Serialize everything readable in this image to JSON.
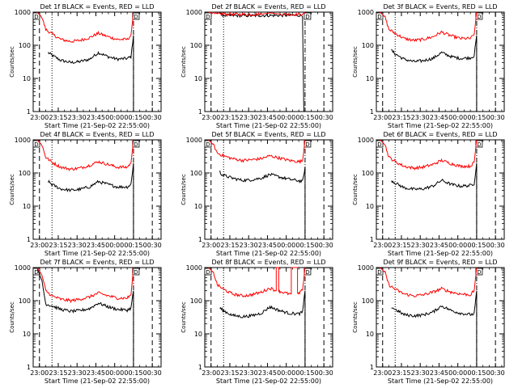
{
  "figure": {
    "x_tick_labels": [
      "23:00",
      "23:15",
      "23:30",
      "23:45",
      "00:00",
      "00:15",
      "00:30"
    ],
    "y_tick_labels": [
      "1",
      "10",
      "100",
      "1000"
    ],
    "ylabel": "Counts/sec",
    "xlabel": "Start Time (21-Sep-02 22:55:00)",
    "marker_label": "D",
    "colors": {
      "events": "#000000",
      "lld": "#ff0000",
      "background": "#ffffff"
    }
  },
  "chart_data": [
    {
      "type": "line",
      "title": "Det 1f BLACK = Events, RED = LLD",
      "xlabel": "Start Time (21-Sep-02 22:55:00)",
      "ylabel": "Counts/sec",
      "y_scale": "log",
      "ylim": [
        1,
        1000
      ],
      "xlim": [
        "22:55",
        "00:37"
      ],
      "x_ticks": [
        "23:00",
        "23:15",
        "23:30",
        "23:45",
        "00:00",
        "00:15",
        "00:30"
      ],
      "dashed_lines": [
        "23:00",
        "00:30"
      ],
      "dotted_lines": [
        "23:10"
      ],
      "dashdot_lines": [
        "00:15"
      ],
      "series": [
        {
          "name": "Events",
          "color": "#000000",
          "x": [
            "23:07",
            "23:10",
            "23:17",
            "23:25",
            "23:32",
            "23:40",
            "23:47",
            "23:55",
            "00:02",
            "00:10",
            "00:13",
            "00:15",
            "00:15"
          ],
          "y": [
            60,
            50,
            35,
            30,
            32,
            38,
            60,
            45,
            38,
            40,
            45,
            200,
            1
          ]
        },
        {
          "name": "LLD",
          "color": "#ff0000",
          "x": [
            "22:58",
            "23:02",
            "23:05",
            "23:10",
            "23:17",
            "23:25",
            "23:32",
            "23:40",
            "23:47",
            "23:55",
            "00:02",
            "00:10",
            "00:13",
            "00:15"
          ],
          "y": [
            1000,
            700,
            300,
            220,
            150,
            130,
            140,
            170,
            230,
            180,
            150,
            150,
            200,
            1000
          ]
        }
      ]
    },
    {
      "type": "line",
      "title": "Det 2f BLACK = Events, RED = LLD",
      "xlabel": "Start Time (21-Sep-02 22:55:00)",
      "ylabel": "Counts/sec",
      "y_scale": "log",
      "ylim": [
        1,
        1000
      ],
      "xlim": [
        "22:55",
        "00:37"
      ],
      "x_ticks": [
        "23:00",
        "23:15",
        "23:30",
        "23:45",
        "00:00",
        "00:15",
        "00:30"
      ],
      "dashed_lines": [
        "23:00",
        "00:30"
      ],
      "dotted_lines": [
        "23:10"
      ],
      "dashdot_lines": [
        "00:15"
      ],
      "series": [
        {
          "name": "Events",
          "color": "#000000",
          "x": [
            "23:07",
            "23:08",
            "23:10",
            "23:25",
            "23:40",
            "23:55",
            "00:10",
            "00:13",
            "00:14"
          ],
          "y": [
            1000,
            850,
            800,
            780,
            790,
            800,
            800,
            800,
            1
          ]
        },
        {
          "name": "LLD",
          "color": "#ff0000",
          "x": [
            "22:58",
            "23:02",
            "23:05",
            "23:07",
            "23:10",
            "23:25",
            "23:40",
            "23:47",
            "23:55",
            "00:10",
            "00:13",
            "00:15"
          ],
          "y": [
            1000,
            900,
            850,
            870,
            880,
            850,
            860,
            950,
            870,
            850,
            870,
            1000
          ]
        }
      ]
    },
    {
      "type": "line",
      "title": "Det 3f BLACK = Events, RED = LLD",
      "xlabel": "Start Time (21-Sep-02 22:55:00)",
      "ylabel": "Counts/sec",
      "y_scale": "log",
      "ylim": [
        1,
        1000
      ],
      "xlim": [
        "22:55",
        "00:37"
      ],
      "x_ticks": [
        "23:00",
        "23:15",
        "23:30",
        "23:45",
        "00:00",
        "00:15",
        "00:30"
      ],
      "dashed_lines": [
        "23:00",
        "00:30"
      ],
      "dotted_lines": [
        "23:10"
      ],
      "dashdot_lines": [
        "00:15"
      ],
      "series": [
        {
          "name": "Events",
          "color": "#000000",
          "x": [
            "23:07",
            "23:10",
            "23:17",
            "23:25",
            "23:32",
            "23:40",
            "23:47",
            "23:55",
            "00:02",
            "00:10",
            "00:13",
            "00:15",
            "00:15"
          ],
          "y": [
            70,
            55,
            38,
            32,
            34,
            40,
            60,
            45,
            40,
            42,
            48,
            200,
            1
          ]
        },
        {
          "name": "LLD",
          "color": "#ff0000",
          "x": [
            "22:58",
            "23:02",
            "23:05",
            "23:10",
            "23:17",
            "23:25",
            "23:32",
            "23:40",
            "23:47",
            "23:55",
            "00:02",
            "00:10",
            "00:13",
            "00:15"
          ],
          "y": [
            1000,
            700,
            300,
            230,
            160,
            140,
            150,
            180,
            250,
            190,
            160,
            160,
            210,
            1000
          ]
        }
      ]
    },
    {
      "type": "line",
      "title": "Det 4f BLACK = Events, RED = LLD",
      "xlabel": "Start Time (21-Sep-02 22:55:00)",
      "ylabel": "Counts/sec",
      "y_scale": "log",
      "ylim": [
        1,
        1000
      ],
      "xlim": [
        "22:55",
        "00:37"
      ],
      "x_ticks": [
        "23:00",
        "23:15",
        "23:30",
        "23:45",
        "00:00",
        "00:15",
        "00:30"
      ],
      "dashed_lines": [
        "23:00",
        "00:30"
      ],
      "dotted_lines": [
        "23:10"
      ],
      "dashdot_lines": [
        "00:15"
      ],
      "series": [
        {
          "name": "Events",
          "color": "#000000",
          "x": [
            "23:07",
            "23:10",
            "23:17",
            "23:25",
            "23:32",
            "23:40",
            "23:47",
            "23:55",
            "00:02",
            "00:10",
            "00:13",
            "00:15",
            "00:15"
          ],
          "y": [
            55,
            45,
            33,
            30,
            32,
            38,
            55,
            45,
            38,
            38,
            45,
            200,
            1
          ]
        },
        {
          "name": "LLD",
          "color": "#ff0000",
          "x": [
            "22:58",
            "23:02",
            "23:05",
            "23:10",
            "23:17",
            "23:25",
            "23:32",
            "23:40",
            "23:47",
            "23:55",
            "00:02",
            "00:10",
            "00:13",
            "00:15"
          ],
          "y": [
            1000,
            700,
            300,
            210,
            150,
            130,
            140,
            170,
            220,
            180,
            150,
            150,
            200,
            1000
          ]
        }
      ]
    },
    {
      "type": "line",
      "title": "Det 5f BLACK = Events, RED = LLD",
      "xlabel": "Start Time (21-Sep-02 22:55:00)",
      "ylabel": "Counts/sec",
      "y_scale": "log",
      "ylim": [
        1,
        1000
      ],
      "xlim": [
        "22:55",
        "00:37"
      ],
      "x_ticks": [
        "23:00",
        "23:15",
        "23:30",
        "23:45",
        "00:00",
        "00:15",
        "00:30"
      ],
      "dashed_lines": [
        "23:00",
        "00:30"
      ],
      "dotted_lines": [
        "23:10"
      ],
      "dashdot_lines": [
        "00:15"
      ],
      "series": [
        {
          "name": "Events",
          "color": "#000000",
          "x": [
            "23:07",
            "23:08",
            "23:10",
            "23:17",
            "23:25",
            "23:32",
            "23:40",
            "23:47",
            "23:55",
            "00:02",
            "00:10",
            "00:13",
            "00:15",
            "00:15"
          ],
          "y": [
            110,
            95,
            85,
            70,
            60,
            62,
            70,
            90,
            75,
            65,
            58,
            55,
            150,
            1
          ]
        },
        {
          "name": "LLD",
          "color": "#ff0000",
          "x": [
            "22:58",
            "23:02",
            "23:05",
            "23:10",
            "23:17",
            "23:25",
            "23:32",
            "23:40",
            "23:47",
            "23:55",
            "00:02",
            "00:10",
            "00:13",
            "00:15"
          ],
          "y": [
            1000,
            700,
            400,
            330,
            270,
            240,
            250,
            270,
            330,
            280,
            240,
            220,
            230,
            1000
          ]
        }
      ]
    },
    {
      "type": "line",
      "title": "Det 6f BLACK = Events, RED = LLD",
      "xlabel": "Start Time (21-Sep-02 22:55:00)",
      "ylabel": "Counts/sec",
      "y_scale": "log",
      "ylim": [
        1,
        1000
      ],
      "xlim": [
        "22:55",
        "00:37"
      ],
      "x_ticks": [
        "23:00",
        "23:15",
        "23:30",
        "23:45",
        "00:00",
        "00:15",
        "00:30"
      ],
      "dashed_lines": [
        "23:00",
        "00:30"
      ],
      "dotted_lines": [
        "23:10"
      ],
      "dashdot_lines": [
        "00:15"
      ],
      "series": [
        {
          "name": "Events",
          "color": "#000000",
          "x": [
            "23:07",
            "23:10",
            "23:17",
            "23:25",
            "23:32",
            "23:40",
            "23:47",
            "23:55",
            "00:02",
            "00:10",
            "00:13",
            "00:15",
            "00:15"
          ],
          "y": [
            60,
            50,
            36,
            32,
            33,
            40,
            60,
            45,
            40,
            42,
            48,
            200,
            1
          ]
        },
        {
          "name": "LLD",
          "color": "#ff0000",
          "x": [
            "22:58",
            "23:02",
            "23:05",
            "23:10",
            "23:17",
            "23:25",
            "23:32",
            "23:40",
            "23:47",
            "23:55",
            "00:02",
            "00:10",
            "00:13",
            "00:15"
          ],
          "y": [
            1000,
            700,
            300,
            220,
            160,
            140,
            150,
            180,
            240,
            190,
            160,
            160,
            210,
            1000
          ]
        }
      ]
    },
    {
      "type": "line",
      "title": "Det 7f BLACK = Events, RED = LLD",
      "xlabel": "Start Time (21-Sep-02 22:55:00)",
      "ylabel": "Counts/sec",
      "y_scale": "log",
      "ylim": [
        1,
        1000
      ],
      "xlim": [
        "22:55",
        "00:37"
      ],
      "x_ticks": [
        "23:00",
        "23:15",
        "23:30",
        "23:45",
        "00:00",
        "00:15",
        "00:30"
      ],
      "dashed_lines": [
        "23:00",
        "00:30"
      ],
      "dotted_lines": [
        "23:10"
      ],
      "dashdot_lines": [
        "00:15"
      ],
      "series": [
        {
          "name": "Events",
          "color": "#000000",
          "x": [
            "22:58",
            "23:02",
            "23:05",
            "23:10",
            "23:17",
            "23:25",
            "23:32",
            "23:40",
            "23:47",
            "23:55",
            "00:02",
            "00:10",
            "00:13",
            "00:15",
            "00:15"
          ],
          "y": [
            1000,
            400,
            80,
            70,
            55,
            48,
            50,
            58,
            85,
            65,
            55,
            52,
            60,
            200,
            1
          ]
        },
        {
          "name": "LLD",
          "color": "#ff0000",
          "x": [
            "22:58",
            "23:02",
            "23:05",
            "23:10",
            "23:17",
            "23:25",
            "23:32",
            "23:40",
            "23:47",
            "23:55",
            "00:02",
            "00:10",
            "00:13",
            "00:15"
          ],
          "y": [
            1000,
            600,
            200,
            140,
            110,
            100,
            110,
            130,
            170,
            140,
            120,
            120,
            150,
            1000
          ]
        }
      ]
    },
    {
      "type": "line",
      "title": "Det 8f BLACK = Events, RED = LLD",
      "xlabel": "Start Time (21-Sep-02 22:55:00)",
      "ylabel": "Counts/sec",
      "y_scale": "log",
      "ylim": [
        1,
        1000
      ],
      "xlim": [
        "22:55",
        "00:37"
      ],
      "x_ticks": [
        "23:00",
        "23:15",
        "23:30",
        "23:45",
        "00:00",
        "00:15",
        "00:30"
      ],
      "dashed_lines": [
        "23:00",
        "00:30"
      ],
      "dotted_lines": [
        "23:10"
      ],
      "dashdot_lines": [
        "00:15"
      ],
      "series": [
        {
          "name": "Events",
          "color": "#000000",
          "x": [
            "23:07",
            "23:10",
            "23:17",
            "23:25",
            "23:32",
            "23:40",
            "23:47",
            "23:55",
            "00:02",
            "00:10",
            "00:13",
            "00:15",
            "00:15"
          ],
          "y": [
            60,
            50,
            36,
            33,
            35,
            42,
            65,
            50,
            42,
            40,
            45,
            200,
            1
          ]
        },
        {
          "name": "LLD",
          "color": "#ff0000",
          "x": [
            "22:58",
            "23:02",
            "23:05",
            "23:10",
            "23:17",
            "23:25",
            "23:32",
            "23:40",
            "23:47",
            "23:52",
            "23:52",
            "23:54",
            "23:54",
            "23:55",
            "00:02",
            "00:04",
            "00:04",
            "00:09",
            "00:09",
            "00:10",
            "00:13",
            "00:15"
          ],
          "y": [
            1000,
            700,
            300,
            220,
            160,
            140,
            150,
            180,
            240,
            200,
            1000,
            1000,
            200,
            190,
            160,
            160,
            1000,
            1000,
            160,
            160,
            210,
            1000
          ]
        }
      ]
    },
    {
      "type": "line",
      "title": "Det 9f BLACK = Events, RED = LLD",
      "xlabel": "Start Time (21-Sep-02 22:55:00)",
      "ylabel": "Counts/sec",
      "y_scale": "log",
      "ylim": [
        1,
        1000
      ],
      "xlim": [
        "22:55",
        "00:37"
      ],
      "x_ticks": [
        "23:00",
        "23:15",
        "23:30",
        "23:45",
        "00:00",
        "00:15",
        "00:30"
      ],
      "dashed_lines": [
        "23:00",
        "00:30"
      ],
      "dotted_lines": [
        "23:10"
      ],
      "dashdot_lines": [
        "00:15"
      ],
      "series": [
        {
          "name": "Events",
          "color": "#000000",
          "x": [
            "23:07",
            "23:10",
            "23:17",
            "23:25",
            "23:32",
            "23:40",
            "23:47",
            "23:55",
            "00:02",
            "00:10",
            "00:13",
            "00:15",
            "00:15"
          ],
          "y": [
            65,
            55,
            38,
            35,
            37,
            45,
            70,
            50,
            42,
            38,
            40,
            200,
            1
          ]
        },
        {
          "name": "LLD",
          "color": "#ff0000",
          "x": [
            "22:58",
            "23:02",
            "23:05",
            "23:10",
            "23:17",
            "23:25",
            "23:32",
            "23:40",
            "23:47",
            "23:55",
            "00:02",
            "00:10",
            "00:13",
            "00:15"
          ],
          "y": [
            1000,
            700,
            300,
            220,
            160,
            140,
            150,
            180,
            230,
            180,
            160,
            150,
            200,
            1000
          ]
        }
      ]
    }
  ]
}
